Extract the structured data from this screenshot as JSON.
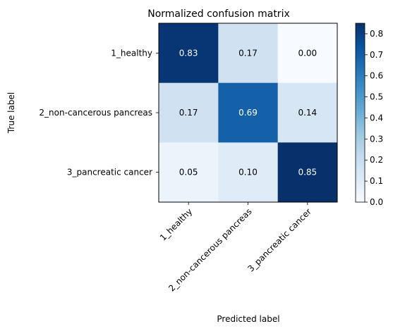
{
  "chart_data": {
    "type": "heatmap",
    "title": "Normalized confusion matrix",
    "xlabel": "Predicted label",
    "ylabel": "True label",
    "x_categories": [
      "1_healthy",
      "2_non-cancerous pancreas",
      "3_pancreatic cancer"
    ],
    "y_categories": [
      "1_healthy",
      "2_non-cancerous pancreas",
      "3_pancreatic cancer"
    ],
    "values": [
      [
        0.83,
        0.17,
        0.0
      ],
      [
        0.17,
        0.69,
        0.14
      ],
      [
        0.05,
        0.1,
        0.85
      ]
    ],
    "colormap": "Blues",
    "color_range": [
      0.0,
      0.85
    ],
    "colorbar_ticks": [
      "0.0",
      "0.1",
      "0.2",
      "0.3",
      "0.4",
      "0.5",
      "0.6",
      "0.7",
      "0.8"
    ],
    "grid": false
  }
}
